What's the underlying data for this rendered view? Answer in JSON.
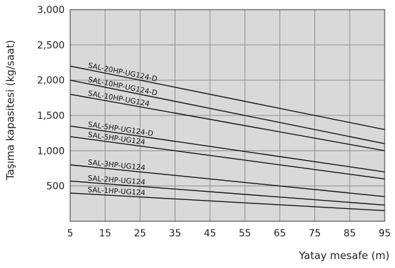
{
  "chart_data": {
    "type": "line",
    "title": "",
    "xlabel": "Yatay mesafe (m)",
    "ylabel": "Taşıma kapasitesi (kg/saat)",
    "xlim": [
      5,
      95
    ],
    "ylim": [
      0,
      3000
    ],
    "x_ticks": [
      5,
      15,
      25,
      35,
      45,
      55,
      65,
      75,
      85,
      95
    ],
    "x_tick_labels": [
      "5",
      "15",
      "25",
      "35",
      "45",
      "55",
      "65",
      "75",
      "85",
      "95"
    ],
    "y_ticks": [
      500,
      1000,
      1500,
      2000,
      2500,
      3000
    ],
    "y_tick_labels": [
      "500",
      "1,000",
      "1,500",
      "2,000",
      "2,500",
      "3,000"
    ],
    "grid": true,
    "plot_background": "#d9d9d9",
    "grid_color": "#8c8c8c",
    "line_color": "#111111",
    "series": [
      {
        "name": "SAL-20HP-UG124-D",
        "x": [
          5,
          95
        ],
        "values": [
          2200,
          1300
        ]
      },
      {
        "name": "SAL-10HP-UG124-D",
        "x": [
          5,
          95
        ],
        "values": [
          2000,
          1100
        ]
      },
      {
        "name": "SAL-10HP-UG124",
        "x": [
          5,
          95
        ],
        "values": [
          1800,
          1000
        ]
      },
      {
        "name": "SAL-5HP-UG124-D",
        "x": [
          5,
          95
        ],
        "values": [
          1350,
          700
        ]
      },
      {
        "name": "SAL-5HP-UG124",
        "x": [
          5,
          95
        ],
        "values": [
          1200,
          600
        ]
      },
      {
        "name": "SAL-3HP-UG124",
        "x": [
          5,
          95
        ],
        "values": [
          800,
          350
        ]
      },
      {
        "name": "SAL-2HP-UG124",
        "x": [
          5,
          95
        ],
        "values": [
          570,
          230
        ]
      },
      {
        "name": "SAL-1HP-UG124",
        "x": [
          5,
          95
        ],
        "values": [
          400,
          150
        ]
      }
    ]
  }
}
